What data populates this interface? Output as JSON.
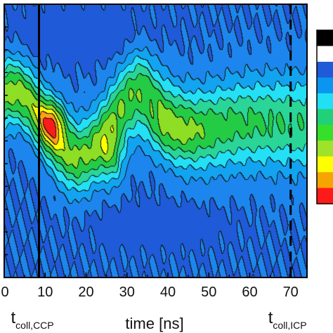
{
  "chart_data": {
    "type": "heatmap",
    "title": "",
    "xlabel": "time [ns]",
    "ylabel": "",
    "xlim": [
      0,
      74
    ],
    "x_ticks": [
      "0",
      "10",
      "20",
      "30",
      "40",
      "50",
      "60",
      "70"
    ],
    "x_tick_values": [
      0,
      10,
      20,
      30,
      40,
      50,
      60,
      70
    ],
    "y_range": [
      0,
      1
    ],
    "grid": false,
    "colorbar": {
      "position": "right",
      "colors": [
        "#000000",
        "#ffffff",
        "#1f5ad9",
        "#0a96f0",
        "#21e0f5",
        "#20d17a",
        "#35e02a",
        "#9ee22a",
        "#ffff00",
        "#f6a400",
        "#ff1a1a"
      ]
    },
    "contour_levels": [
      0.1,
      0.2,
      0.3,
      0.4,
      0.5,
      0.6,
      0.7,
      0.8,
      0.9
    ],
    "level_colors": [
      "#1f5ad9",
      "#1c86ee",
      "#12a4f0",
      "#23e0f5",
      "#29d698",
      "#24cc45",
      "#8ede25",
      "#ffff00",
      "#ff9f1a",
      "#ff1a1a"
    ],
    "features": [
      {
        "kind": "peak",
        "x": 12,
        "y": 0.56,
        "value": 1.0
      },
      {
        "kind": "peak",
        "x": 26.5,
        "y": 0.43,
        "value": 0.92
      },
      {
        "kind": "ridge",
        "x": 40,
        "y": 0.52,
        "value": 0.82
      },
      {
        "kind": "low",
        "x": 18,
        "y": 0.89,
        "value": 0.06
      },
      {
        "kind": "low",
        "x": 38,
        "y": 0.19,
        "value": 0.08
      }
    ],
    "vertical_markers": [
      {
        "x": 8.5,
        "style": "solid",
        "label": "t",
        "sub": "coll,CCP"
      },
      {
        "x": 70,
        "style": "dashed",
        "label": "t",
        "sub": "coll,ICP"
      }
    ]
  }
}
